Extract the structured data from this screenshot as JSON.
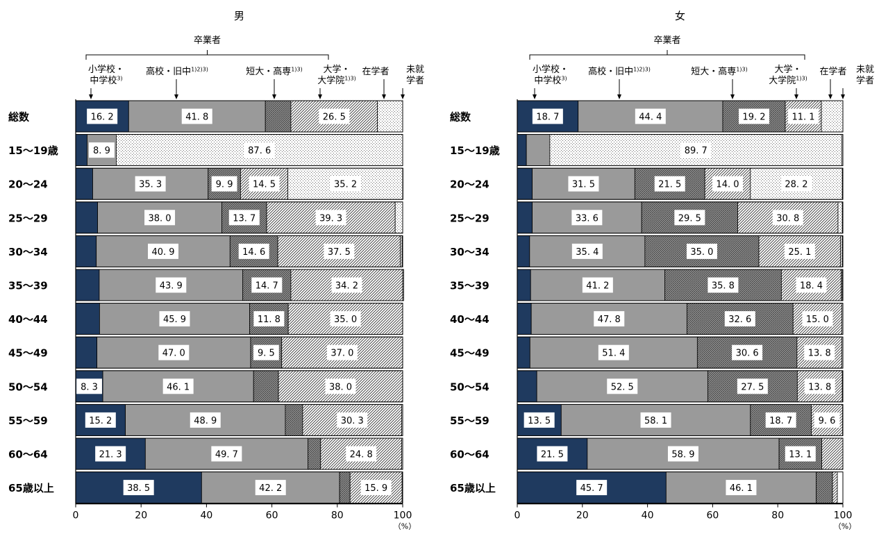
{
  "chart_data": [
    {
      "type": "bar",
      "stacked": true,
      "orientation": "horizontal",
      "title": "男",
      "group_label": "卒業者",
      "categories": [
        "総数",
        "15～19歳",
        "20～24",
        "25～29",
        "30～34",
        "35～39",
        "40～44",
        "45～49",
        "50～54",
        "55～59",
        "60～64",
        "65歳以上"
      ],
      "series": [
        {
          "name": "小学校・中学校3)",
          "name_lines": [
            "小学校・",
            "中学校3)"
          ],
          "color": "#1f3a5f",
          "values": [
            16.2,
            3.5,
            5.2,
            6.7,
            6.3,
            7.2,
            7.3,
            6.5,
            8.3,
            15.2,
            21.3,
            38.5
          ],
          "labeled": [
            true,
            false,
            false,
            false,
            false,
            false,
            false,
            false,
            true,
            true,
            true,
            true
          ]
        },
        {
          "name": "高校・旧中1)2)3)",
          "name_lines": [
            "高校・旧中1)2)3)"
          ],
          "color": "#9a9a9a",
          "values": [
            41.8,
            8.9,
            35.3,
            38.0,
            40.9,
            43.9,
            45.9,
            47.0,
            46.1,
            48.9,
            49.7,
            42.2
          ],
          "labeled": [
            true,
            true,
            true,
            true,
            true,
            true,
            true,
            true,
            true,
            true,
            true,
            true
          ]
        },
        {
          "name": "短大・高専1)3)",
          "name_lines": [
            "短大・高専1)3)"
          ],
          "color": "#6e6e6e",
          "values": [
            7.8,
            0,
            9.9,
            13.7,
            14.6,
            14.7,
            11.8,
            9.5,
            7.6,
            5.3,
            3.9,
            3.2
          ],
          "labeled": [
            false,
            false,
            true,
            true,
            true,
            true,
            true,
            true,
            false,
            false,
            false,
            false
          ]
        },
        {
          "name": "大学・大学院1)3)",
          "name_lines": [
            "大学・",
            "大学院1)3)"
          ],
          "color": "#ececec",
          "values": [
            26.5,
            0,
            14.5,
            39.3,
            37.5,
            34.2,
            35.0,
            37.0,
            38.0,
            30.3,
            24.8,
            15.9
          ],
          "labeled": [
            true,
            false,
            true,
            true,
            true,
            true,
            true,
            true,
            true,
            true,
            true,
            true
          ]
        },
        {
          "name": "在学者",
          "name_lines": [
            "在学者"
          ],
          "color": "#f2f2f2",
          "values": [
            7.7,
            87.6,
            35.2,
            2.3,
            0.5,
            0.3,
            0,
            0,
            0,
            0,
            0,
            0
          ],
          "labeled": [
            false,
            true,
            true,
            false,
            false,
            false,
            false,
            false,
            false,
            false,
            false,
            false
          ]
        },
        {
          "name": "未就学者",
          "name_lines": [
            "未就",
            "学者"
          ],
          "color": "#ffffff",
          "values": [
            0,
            0,
            0,
            0,
            0,
            0,
            0,
            0,
            0,
            0,
            0,
            0
          ],
          "labeled": [
            false,
            false,
            false,
            false,
            false,
            false,
            false,
            false,
            false,
            false,
            false,
            false
          ]
        }
      ],
      "xlim": [
        0,
        100
      ],
      "xticks": [
        "0",
        "20",
        "40",
        "60",
        "80",
        "100"
      ],
      "unit_label": "（%）"
    },
    {
      "type": "bar",
      "stacked": true,
      "orientation": "horizontal",
      "title": "女",
      "group_label": "卒業者",
      "categories": [
        "総数",
        "15～19歳",
        "20～24",
        "25～29",
        "30～34",
        "35～39",
        "40～44",
        "45～49",
        "50～54",
        "55～59",
        "60～64",
        "65歳以上"
      ],
      "series": [
        {
          "name": "小学校・中学校3)",
          "name_lines": [
            "小学校・",
            "中学校3)"
          ],
          "color": "#1f3a5f",
          "values": [
            18.7,
            2.8,
            4.6,
            4.6,
            3.8,
            4.1,
            4.3,
            3.9,
            6.0,
            13.5,
            21.5,
            45.7
          ],
          "labeled": [
            true,
            false,
            false,
            false,
            false,
            false,
            false,
            false,
            false,
            true,
            true,
            true
          ]
        },
        {
          "name": "高校・旧中1)2)3)",
          "name_lines": [
            "高校・旧中1)2)3)"
          ],
          "color": "#9a9a9a",
          "values": [
            44.4,
            7.2,
            31.5,
            33.6,
            35.4,
            41.2,
            47.8,
            51.4,
            52.5,
            58.1,
            58.9,
            46.1
          ],
          "labeled": [
            true,
            false,
            true,
            true,
            true,
            true,
            true,
            true,
            true,
            true,
            true,
            true
          ]
        },
        {
          "name": "短大・高専1)3)",
          "name_lines": [
            "短大・高専1)3)"
          ],
          "color": "#6e6e6e",
          "values": [
            19.2,
            0,
            21.5,
            29.5,
            35.0,
            35.8,
            32.6,
            30.6,
            27.5,
            18.7,
            13.1,
            5.0
          ],
          "labeled": [
            true,
            false,
            true,
            true,
            true,
            true,
            true,
            true,
            true,
            true,
            true,
            false
          ]
        },
        {
          "name": "大学・大学院1)3)",
          "name_lines": [
            "大学・",
            "大学院1)3)"
          ],
          "color": "#ececec",
          "values": [
            11.1,
            0,
            14.0,
            30.8,
            25.1,
            18.4,
            15.0,
            13.8,
            13.8,
            9.6,
            6.5,
            1.5
          ],
          "labeled": [
            true,
            false,
            true,
            true,
            true,
            true,
            true,
            true,
            true,
            true,
            false,
            false
          ]
        },
        {
          "name": "在学者",
          "name_lines": [
            "在学者"
          ],
          "color": "#f2f2f2",
          "values": [
            6.6,
            89.7,
            28.2,
            1.3,
            0.5,
            0.3,
            0,
            0,
            0,
            0,
            0,
            0
          ],
          "labeled": [
            false,
            true,
            true,
            false,
            false,
            false,
            false,
            false,
            false,
            false,
            false,
            false
          ]
        },
        {
          "name": "未就学者",
          "name_lines": [
            "未就",
            "学者"
          ],
          "color": "#ffffff",
          "values": [
            0,
            0,
            0,
            0,
            0,
            0,
            0,
            0,
            0,
            0,
            0,
            0
          ],
          "labeled": [
            false,
            false,
            false,
            false,
            false,
            false,
            false,
            false,
            false,
            false,
            false,
            false
          ]
        }
      ],
      "xlim": [
        0,
        100
      ],
      "xticks": [
        "0",
        "20",
        "40",
        "60",
        "80",
        "100"
      ],
      "unit_label": "（%）"
    }
  ]
}
